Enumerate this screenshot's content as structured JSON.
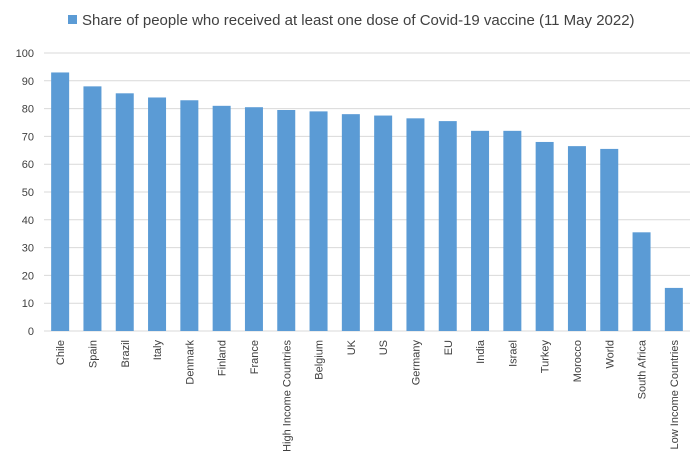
{
  "chart_data": {
    "type": "bar",
    "legend": {
      "label": "Share of people who received at least one dose of Covid-19 vaccine (11 May 2022)",
      "position": "top"
    },
    "categories": [
      "Chile",
      "Spain",
      "Brazil",
      "Italy",
      "Denmark",
      "Finland",
      "France",
      "High Income Countries",
      "Belgium",
      "UK",
      "US",
      "Germany",
      "EU",
      "India",
      "Israel",
      "Turkey",
      "Morocco",
      "World",
      "South Africa",
      "Low Income Countries"
    ],
    "series": [
      {
        "name": "Share of people who received at least one dose of Covid-19 vaccine (11 May 2022)",
        "values": [
          93,
          88,
          85.5,
          84,
          83,
          81,
          80.5,
          79.5,
          79,
          78,
          77.5,
          76.5,
          75.5,
          72,
          72,
          68,
          66.5,
          65.5,
          35.5,
          15.5
        ]
      }
    ],
    "yticks": [
      "0",
      "10",
      "20",
      "30",
      "40",
      "50",
      "60",
      "70",
      "80",
      "90",
      "100"
    ],
    "ylim": [
      0,
      100
    ],
    "xlabel": "",
    "ylabel": "",
    "grid": true,
    "colors": {
      "bar": "#5b9bd5",
      "grid": "#d9d9d9",
      "text": "#404040"
    }
  }
}
